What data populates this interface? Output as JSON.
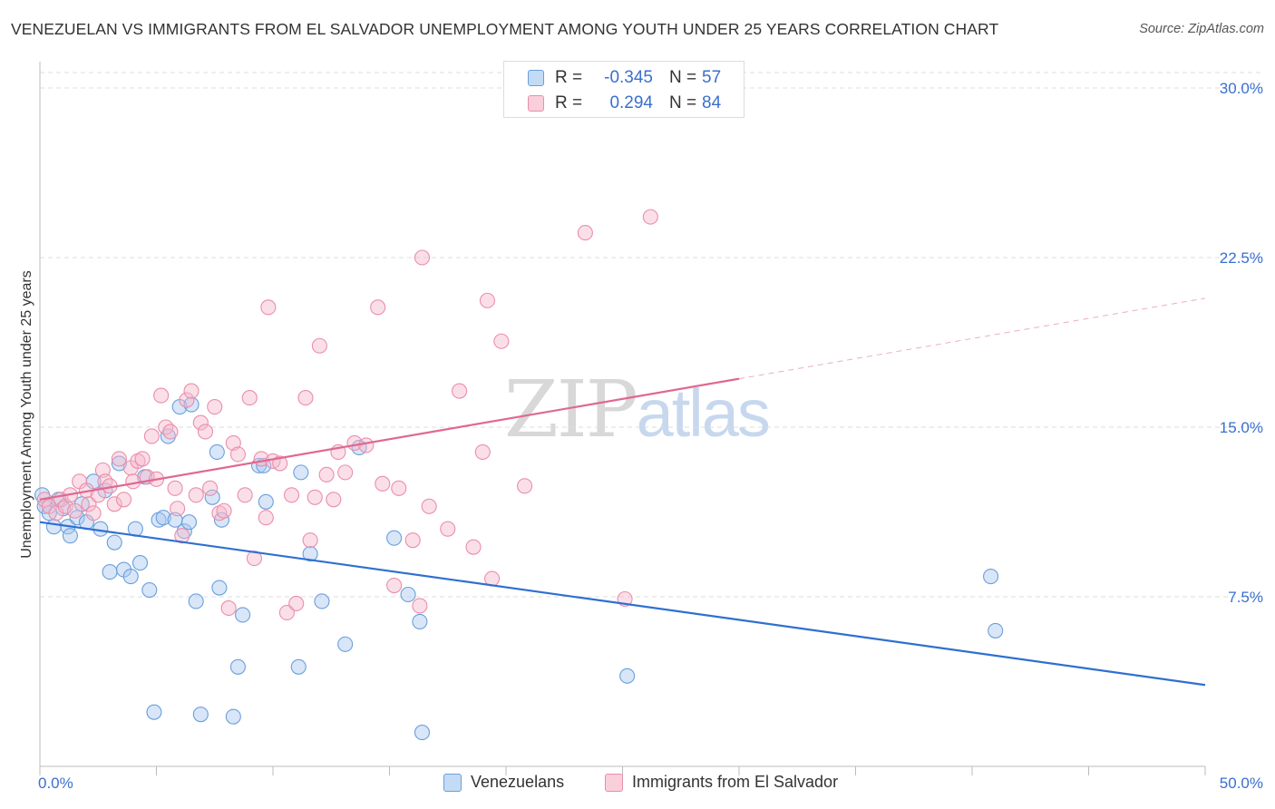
{
  "header": {
    "title": "VENEZUELAN VS IMMIGRANTS FROM EL SALVADOR UNEMPLOYMENT AMONG YOUTH UNDER 25 YEARS CORRELATION CHART",
    "source": "Source: ZipAtlas.com"
  },
  "watermark": {
    "zip": "ZIP",
    "atlas": "atlas"
  },
  "legend": {
    "rows": [
      {
        "r_label": "R =",
        "r_value": "-0.345",
        "n_label": "N =",
        "n_value": "57"
      },
      {
        "r_label": "R =",
        "r_value": "0.294",
        "n_label": "N =",
        "n_value": "84"
      }
    ]
  },
  "bottom_legend": {
    "series1": "Venezuelans",
    "series2": "Immigrants from El Salvador"
  },
  "colors": {
    "blue_fill": "#a8c8f0",
    "blue_stroke": "#6a9fdc",
    "blue_line": "#2f6fd0",
    "pink_fill": "#f6b8cc",
    "pink_stroke": "#ea8eaa",
    "pink_line": "#e06890",
    "tick_label": "#3a6fcf",
    "grid": "#dedede"
  },
  "chart_data": {
    "type": "scatter",
    "title": "VENEZUELAN VS IMMIGRANTS FROM EL SALVADOR UNEMPLOYMENT AMONG YOUTH UNDER 25 YEARS CORRELATION CHART",
    "xlabel": "",
    "ylabel": "Unemployment Among Youth under 25 years",
    "xlim": [
      0,
      50
    ],
    "ylim": [
      0,
      30
    ],
    "x_tick_labels": [
      "0.0%",
      "50.0%"
    ],
    "y_ticks": [
      7.5,
      15.0,
      22.5,
      30.0
    ],
    "y_tick_labels": [
      "7.5%",
      "15.0%",
      "22.5%",
      "30.0%"
    ],
    "grid": true,
    "series": [
      {
        "name": "Venezuelans",
        "R": -0.345,
        "N": 57,
        "trend": {
          "x": [
            0,
            50
          ],
          "y": [
            10.8,
            3.6
          ],
          "dashed_from": null
        },
        "points": [
          [
            0.1,
            12.0
          ],
          [
            0.2,
            11.5
          ],
          [
            0.4,
            11.2
          ],
          [
            0.6,
            10.6
          ],
          [
            0.8,
            11.8
          ],
          [
            1.0,
            11.4
          ],
          [
            1.2,
            10.6
          ],
          [
            1.3,
            10.2
          ],
          [
            1.6,
            11.0
          ],
          [
            1.8,
            11.6
          ],
          [
            2.0,
            10.8
          ],
          [
            2.3,
            12.6
          ],
          [
            2.6,
            10.5
          ],
          [
            2.8,
            12.2
          ],
          [
            3.0,
            8.6
          ],
          [
            3.2,
            9.9
          ],
          [
            3.4,
            13.4
          ],
          [
            3.6,
            8.7
          ],
          [
            3.9,
            8.4
          ],
          [
            4.1,
            10.5
          ],
          [
            4.3,
            9.0
          ],
          [
            4.5,
            12.8
          ],
          [
            4.7,
            7.8
          ],
          [
            4.9,
            2.4
          ],
          [
            5.1,
            10.9
          ],
          [
            5.3,
            11.0
          ],
          [
            5.5,
            14.6
          ],
          [
            5.8,
            10.9
          ],
          [
            6.0,
            15.9
          ],
          [
            6.2,
            10.4
          ],
          [
            6.4,
            10.8
          ],
          [
            6.5,
            16.0
          ],
          [
            6.7,
            7.3
          ],
          [
            6.9,
            2.3
          ],
          [
            7.4,
            11.9
          ],
          [
            7.6,
            13.9
          ],
          [
            7.7,
            7.9
          ],
          [
            7.8,
            10.9
          ],
          [
            8.3,
            2.2
          ],
          [
            8.5,
            4.4
          ],
          [
            8.7,
            6.7
          ],
          [
            9.4,
            13.3
          ],
          [
            9.7,
            11.7
          ],
          [
            9.6,
            13.3
          ],
          [
            11.1,
            4.4
          ],
          [
            11.2,
            13.0
          ],
          [
            11.6,
            9.4
          ],
          [
            12.1,
            7.3
          ],
          [
            13.1,
            5.4
          ],
          [
            13.7,
            14.1
          ],
          [
            15.2,
            10.1
          ],
          [
            15.8,
            7.6
          ],
          [
            16.3,
            6.4
          ],
          [
            16.4,
            1.5
          ],
          [
            25.2,
            4.0
          ],
          [
            40.8,
            8.4
          ],
          [
            41.0,
            6.0
          ]
        ]
      },
      {
        "name": "Immigrants from El Salvador",
        "R": 0.294,
        "N": 84,
        "trend": {
          "x": [
            0,
            50
          ],
          "y": [
            11.8,
            20.7
          ],
          "dashed_from": 30
        },
        "points": [
          [
            0.2,
            11.8
          ],
          [
            0.4,
            11.5
          ],
          [
            0.7,
            11.2
          ],
          [
            0.9,
            11.8
          ],
          [
            1.1,
            11.5
          ],
          [
            1.3,
            12.0
          ],
          [
            1.5,
            11.3
          ],
          [
            1.7,
            12.6
          ],
          [
            2.0,
            12.2
          ],
          [
            2.1,
            11.6
          ],
          [
            2.3,
            11.2
          ],
          [
            2.5,
            12.0
          ],
          [
            2.7,
            13.1
          ],
          [
            2.8,
            12.6
          ],
          [
            3.0,
            12.4
          ],
          [
            3.2,
            11.6
          ],
          [
            3.4,
            13.6
          ],
          [
            3.6,
            11.8
          ],
          [
            3.9,
            13.2
          ],
          [
            4.0,
            12.6
          ],
          [
            4.2,
            13.5
          ],
          [
            4.4,
            13.6
          ],
          [
            4.6,
            12.8
          ],
          [
            4.8,
            14.6
          ],
          [
            5.0,
            12.7
          ],
          [
            5.2,
            16.4
          ],
          [
            5.4,
            15.0
          ],
          [
            5.6,
            14.8
          ],
          [
            5.8,
            12.3
          ],
          [
            5.9,
            11.4
          ],
          [
            6.1,
            10.2
          ],
          [
            6.3,
            16.2
          ],
          [
            6.5,
            16.6
          ],
          [
            6.7,
            12.0
          ],
          [
            6.9,
            15.2
          ],
          [
            7.1,
            14.8
          ],
          [
            7.3,
            12.3
          ],
          [
            7.5,
            15.9
          ],
          [
            7.7,
            11.2
          ],
          [
            7.9,
            11.3
          ],
          [
            8.1,
            7.0
          ],
          [
            8.3,
            14.3
          ],
          [
            8.5,
            13.8
          ],
          [
            8.8,
            12.0
          ],
          [
            9.0,
            16.3
          ],
          [
            9.2,
            9.2
          ],
          [
            9.5,
            13.6
          ],
          [
            9.7,
            11.0
          ],
          [
            9.8,
            20.3
          ],
          [
            10.0,
            13.5
          ],
          [
            10.3,
            13.4
          ],
          [
            10.6,
            6.8
          ],
          [
            10.8,
            12.0
          ],
          [
            11.0,
            7.2
          ],
          [
            11.4,
            16.3
          ],
          [
            11.6,
            10.0
          ],
          [
            11.8,
            11.9
          ],
          [
            12.0,
            18.6
          ],
          [
            12.3,
            12.9
          ],
          [
            12.6,
            11.8
          ],
          [
            12.8,
            13.9
          ],
          [
            13.1,
            13.0
          ],
          [
            13.5,
            14.3
          ],
          [
            14.0,
            14.2
          ],
          [
            14.5,
            20.3
          ],
          [
            14.7,
            12.5
          ],
          [
            15.2,
            8.0
          ],
          [
            15.4,
            12.3
          ],
          [
            16.0,
            10.0
          ],
          [
            16.3,
            7.1
          ],
          [
            16.4,
            22.5
          ],
          [
            16.7,
            11.5
          ],
          [
            17.5,
            10.5
          ],
          [
            18.0,
            16.6
          ],
          [
            18.6,
            9.7
          ],
          [
            19.0,
            13.9
          ],
          [
            19.2,
            20.6
          ],
          [
            19.4,
            8.3
          ],
          [
            19.8,
            18.8
          ],
          [
            20.8,
            12.4
          ],
          [
            20.4,
            29.2
          ],
          [
            23.4,
            23.6
          ],
          [
            25.1,
            7.4
          ],
          [
            26.2,
            24.3
          ]
        ]
      }
    ]
  }
}
